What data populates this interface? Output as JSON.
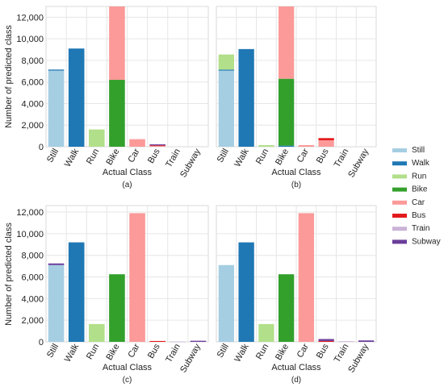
{
  "legend": {
    "items": [
      {
        "label": "Still",
        "color": "#a6cee3"
      },
      {
        "label": "Walk",
        "color": "#1f78b4"
      },
      {
        "label": "Run",
        "color": "#b2df8a"
      },
      {
        "label": "Bike",
        "color": "#33a02c"
      },
      {
        "label": "Car",
        "color": "#fb9a99"
      },
      {
        "label": "Bus",
        "color": "#e31a1c"
      },
      {
        "label": "Train",
        "color": "#cab2d6"
      },
      {
        "label": "Subway",
        "color": "#6a3d9a"
      }
    ]
  },
  "chart_data": [
    {
      "type": "bar",
      "stacked": true,
      "panel_label": "(a)",
      "xlabel": "Actual Class",
      "ylabel": "Number of predicted class",
      "categories": [
        "Still",
        "Walk",
        "Run",
        "Bike",
        "Car",
        "Bus",
        "Train",
        "Subway"
      ],
      "yticks": [
        0,
        2000,
        4000,
        6000,
        8000,
        10000,
        12000
      ],
      "ytick_labels": [
        "0",
        "2,000",
        "4,000",
        "6,000",
        "8,000",
        "10,000",
        "12,000"
      ],
      "ylim": [
        0,
        13000
      ],
      "series": [
        {
          "color": "#a6cee3",
          "values": [
            7050,
            0,
            0,
            0,
            0,
            0,
            0,
            0
          ]
        },
        {
          "color": "#1f78b4",
          "values": [
            100,
            9100,
            0,
            0,
            0,
            0,
            0,
            0
          ]
        },
        {
          "color": "#b2df8a",
          "values": [
            0,
            0,
            1600,
            0,
            0,
            0,
            0,
            0
          ]
        },
        {
          "color": "#33a02c",
          "values": [
            0,
            0,
            0,
            6200,
            0,
            0,
            0,
            0
          ]
        },
        {
          "color": "#fb9a99",
          "values": [
            0,
            0,
            0,
            6800,
            700,
            80,
            0,
            0
          ]
        },
        {
          "color": "#e31a1c",
          "values": [
            0,
            0,
            0,
            0,
            0,
            50,
            0,
            0
          ]
        },
        {
          "color": "#cab2d6",
          "values": [
            0,
            0,
            0,
            0,
            0,
            0,
            0,
            0
          ]
        },
        {
          "color": "#6a3d9a",
          "values": [
            0,
            0,
            0,
            0,
            0,
            90,
            0,
            0
          ]
        }
      ]
    },
    {
      "type": "bar",
      "stacked": true,
      "panel_label": "(b)",
      "xlabel": "Actual Class",
      "ylabel": "",
      "categories": [
        "Still",
        "Walk",
        "Run",
        "Bike",
        "Car",
        "Bus",
        "Train",
        "Subway"
      ],
      "yticks": [],
      "ytick_labels": [],
      "ylim": [
        0,
        13000
      ],
      "series": [
        {
          "color": "#a6cee3",
          "values": [
            7050,
            0,
            0,
            0,
            0,
            0,
            0,
            0
          ]
        },
        {
          "color": "#1f78b4",
          "values": [
            100,
            9050,
            0,
            100,
            0,
            0,
            0,
            0
          ]
        },
        {
          "color": "#b2df8a",
          "values": [
            1400,
            0,
            150,
            0,
            0,
            0,
            0,
            0
          ]
        },
        {
          "color": "#33a02c",
          "values": [
            0,
            0,
            0,
            6200,
            0,
            0,
            0,
            0
          ]
        },
        {
          "color": "#fb9a99",
          "values": [
            0,
            0,
            0,
            6700,
            150,
            600,
            0,
            0
          ]
        },
        {
          "color": "#e31a1c",
          "values": [
            0,
            0,
            0,
            0,
            0,
            200,
            0,
            0
          ]
        },
        {
          "color": "#cab2d6",
          "values": [
            0,
            0,
            0,
            0,
            0,
            0,
            0,
            0
          ]
        },
        {
          "color": "#6a3d9a",
          "values": [
            0,
            0,
            0,
            0,
            0,
            0,
            0,
            0
          ]
        }
      ]
    },
    {
      "type": "bar",
      "stacked": true,
      "panel_label": "(c)",
      "xlabel": "Actual Class",
      "ylabel": "Number of predicted class",
      "categories": [
        "Still",
        "Walk",
        "Run",
        "Bike",
        "Car",
        "Bus",
        "Train",
        "Subway"
      ],
      "yticks": [
        0,
        2000,
        4000,
        6000,
        8000,
        10000,
        12000
      ],
      "ytick_labels": [
        "0",
        "2,000",
        "4,000",
        "6,000",
        "8,000",
        "10,000",
        "12,000"
      ],
      "ylim": [
        0,
        12600
      ],
      "series": [
        {
          "color": "#a6cee3",
          "values": [
            7100,
            0,
            0,
            0,
            0,
            0,
            0,
            0
          ]
        },
        {
          "color": "#1f78b4",
          "values": [
            0,
            9200,
            0,
            0,
            0,
            0,
            0,
            0
          ]
        },
        {
          "color": "#b2df8a",
          "values": [
            0,
            0,
            1650,
            0,
            0,
            0,
            0,
            0
          ]
        },
        {
          "color": "#33a02c",
          "values": [
            0,
            0,
            0,
            6250,
            0,
            0,
            0,
            0
          ]
        },
        {
          "color": "#fb9a99",
          "values": [
            0,
            0,
            0,
            0,
            11900,
            0,
            0,
            0
          ]
        },
        {
          "color": "#e31a1c",
          "values": [
            0,
            0,
            0,
            0,
            0,
            80,
            0,
            0
          ]
        },
        {
          "color": "#cab2d6",
          "values": [
            0,
            0,
            0,
            0,
            0,
            0,
            30,
            0
          ]
        },
        {
          "color": "#6a3d9a",
          "values": [
            150,
            0,
            0,
            0,
            0,
            0,
            0,
            100
          ]
        }
      ]
    },
    {
      "type": "bar",
      "stacked": true,
      "panel_label": "(d)",
      "xlabel": "Actual Class",
      "ylabel": "",
      "categories": [
        "Still",
        "Walk",
        "Run",
        "Bike",
        "Car",
        "Bus",
        "Train",
        "Subway"
      ],
      "yticks": [],
      "ytick_labels": [],
      "ylim": [
        0,
        12600
      ],
      "series": [
        {
          "color": "#a6cee3",
          "values": [
            7100,
            0,
            0,
            0,
            0,
            0,
            0,
            0
          ]
        },
        {
          "color": "#1f78b4",
          "values": [
            0,
            9200,
            0,
            0,
            0,
            0,
            0,
            0
          ]
        },
        {
          "color": "#b2df8a",
          "values": [
            0,
            0,
            1650,
            0,
            0,
            0,
            0,
            0
          ]
        },
        {
          "color": "#33a02c",
          "values": [
            0,
            0,
            0,
            6250,
            0,
            0,
            0,
            0
          ]
        },
        {
          "color": "#fb9a99",
          "values": [
            0,
            0,
            0,
            0,
            11900,
            0,
            0,
            0
          ]
        },
        {
          "color": "#e31a1c",
          "values": [
            0,
            0,
            0,
            0,
            0,
            80,
            0,
            0
          ]
        },
        {
          "color": "#cab2d6",
          "values": [
            0,
            0,
            0,
            0,
            0,
            0,
            60,
            0
          ]
        },
        {
          "color": "#6a3d9a",
          "values": [
            0,
            0,
            0,
            0,
            0,
            180,
            0,
            130
          ]
        }
      ]
    }
  ]
}
